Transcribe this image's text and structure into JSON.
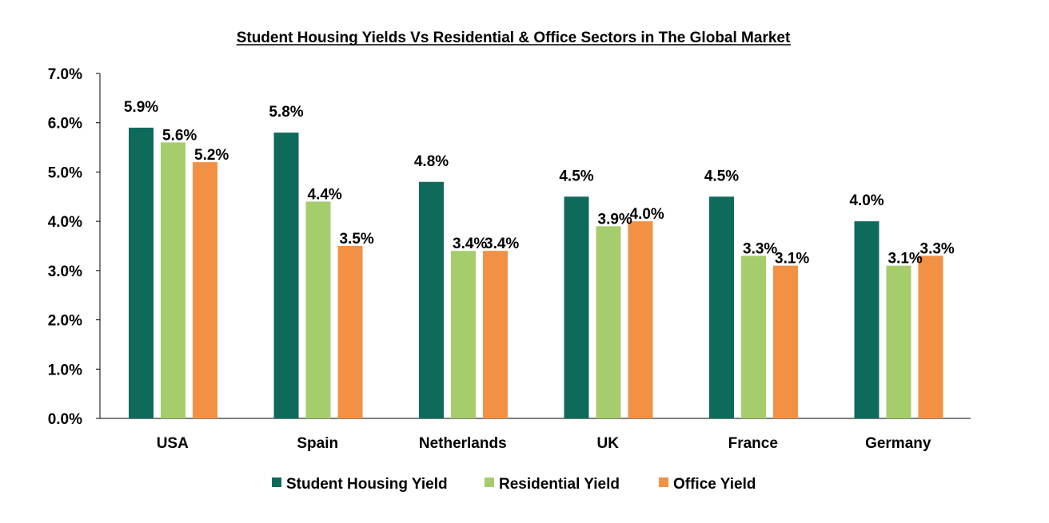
{
  "chart_data": {
    "type": "bar",
    "title": "Student Housing Yields Vs Residential & Office Sectors in The Global Market",
    "xlabel": "",
    "ylabel": "",
    "categories": [
      "USA",
      "Spain",
      "Netherlands",
      "UK",
      "France",
      "Germany"
    ],
    "series": [
      {
        "name": "Student Housing Yield",
        "color": "#0E6B5C",
        "values": [
          5.9,
          5.8,
          4.8,
          4.5,
          4.5,
          4.0
        ],
        "labels": [
          "5.9%",
          "5.8%",
          "4.8%",
          "4.5%",
          "4.5%",
          "4.0%"
        ]
      },
      {
        "name": "Residential Yield",
        "color": "#A6CD6C",
        "values": [
          5.6,
          4.4,
          3.4,
          3.9,
          3.3,
          3.1
        ],
        "labels": [
          "5.6%",
          "4.4%",
          "3.4%",
          "3.9%",
          "3.3%",
          "3.1%"
        ]
      },
      {
        "name": "Office Yield",
        "color": "#F29144",
        "values": [
          5.2,
          3.5,
          3.4,
          4.0,
          3.1,
          3.3
        ],
        "labels": [
          "5.2%",
          "3.5%",
          "3.4%",
          "4.0%",
          "3.1%",
          "3.3%"
        ]
      }
    ],
    "ylim": [
      0,
      7
    ],
    "yticks": [
      0,
      1,
      2,
      3,
      4,
      5,
      6,
      7
    ],
    "ytick_labels": [
      "0.0%",
      "1.0%",
      "2.0%",
      "3.0%",
      "4.0%",
      "5.0%",
      "6.0%",
      "7.0%"
    ],
    "grid": false,
    "legend_position": "bottom"
  }
}
